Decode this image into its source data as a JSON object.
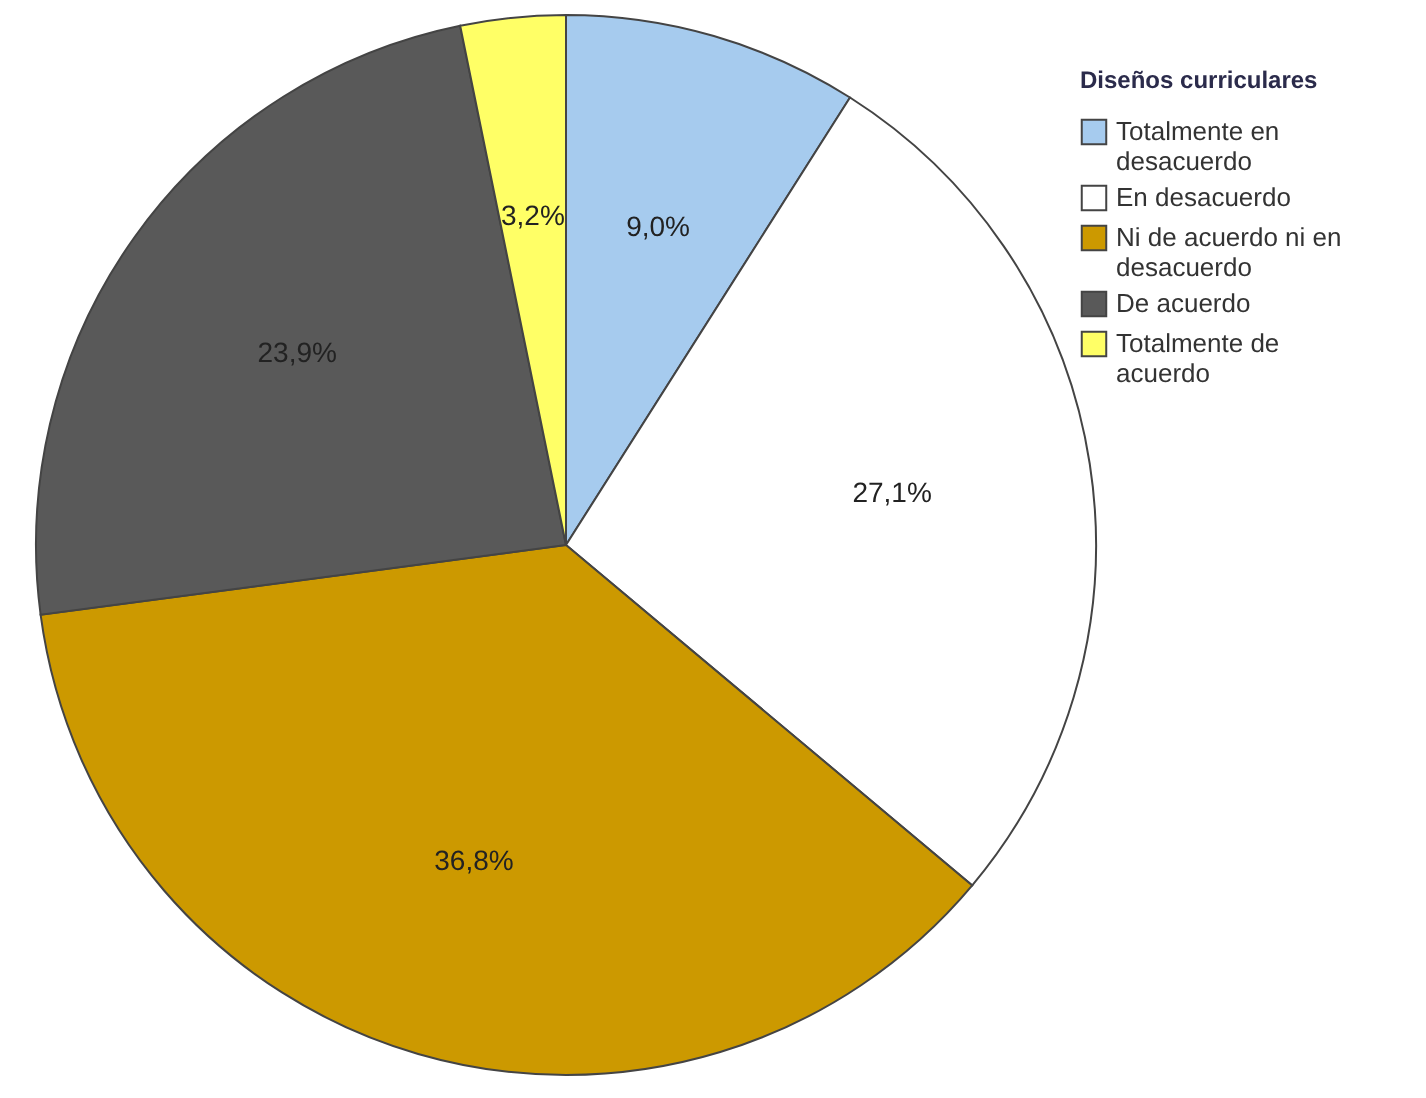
{
  "chart_data": {
    "type": "pie",
    "legend_title": "Diseños curriculares",
    "categories": [
      "Totalmente en desacuerdo",
      "En desacuerdo",
      "Ni de acuerdo ni en desacuerdo",
      "De acuerdo",
      "Totalmente de acuerdo"
    ],
    "values": [
      9.0,
      27.1,
      36.8,
      23.9,
      3.2
    ],
    "colors": [
      "#a6cbee",
      "#ffffff",
      "#cc9900",
      "#595959",
      "#ffff66"
    ],
    "value_labels": [
      "9,0%",
      "27,1%",
      "36,8%",
      "23,9%",
      "3,2%"
    ],
    "legend": "top right"
  }
}
